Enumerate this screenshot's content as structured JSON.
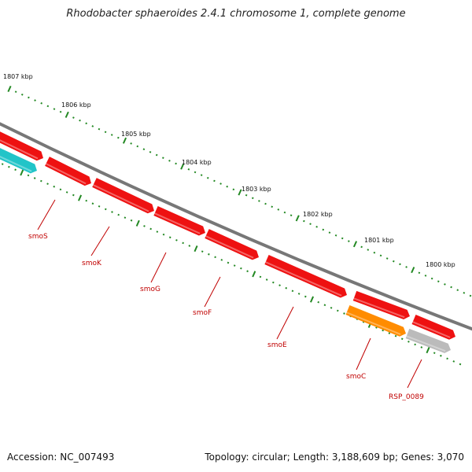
{
  "title": "Rhodobacter sphaeroides 2.4.1 chromosome 1, complete genome",
  "footer": {
    "accession": "Accession: NC_007493",
    "summary": "Topology: circular; Length: 3,188,609 bp; Genes: 3,070"
  },
  "colors": {
    "backbone": "#777777",
    "gene_red": "#ee1111",
    "gene_cyan": "#22c4c8",
    "gene_orange": "#ff8c00",
    "gene_gray": "#bbbbbb",
    "tick_green": "#228822",
    "label_red": "#c00000"
  },
  "scale_labels": [
    "1807 kbp",
    "1806 kbp",
    "1805 kbp",
    "1804 kbp",
    "1803 kbp",
    "1802 kbp",
    "1801 kbp",
    "1800 kbp"
  ],
  "genes": [
    {
      "name": "",
      "color": "red",
      "track": "outer"
    },
    {
      "name": "",
      "color": "cyan",
      "track": "inner"
    },
    {
      "name": "smoS",
      "color": "red",
      "track": "outer"
    },
    {
      "name": "smoK",
      "color": "red",
      "track": "outer"
    },
    {
      "name": "smoG",
      "color": "red",
      "track": "outer"
    },
    {
      "name": "smoF",
      "color": "red",
      "track": "outer"
    },
    {
      "name": "smoE",
      "color": "red",
      "track": "outer"
    },
    {
      "name": "",
      "color": "red",
      "track": "outer"
    },
    {
      "name": "",
      "color": "red",
      "track": "outer"
    },
    {
      "name": "smoC",
      "color": "orange",
      "track": "inner"
    },
    {
      "name": "RSP_0089",
      "color": "gray",
      "track": "inner"
    }
  ]
}
